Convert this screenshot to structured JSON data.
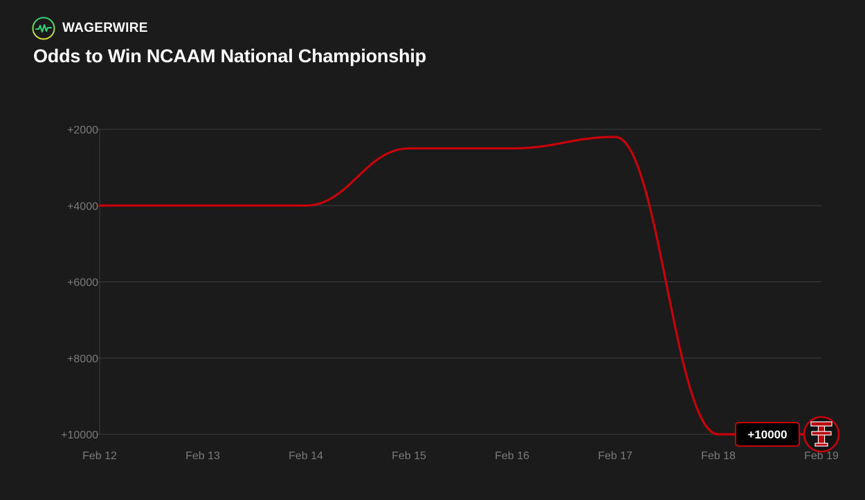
{
  "brand": {
    "name": "WAGERWIRE",
    "logo_icon": "wave-pulse-icon"
  },
  "chart_data": {
    "type": "line",
    "title": "Odds to Win NCAAM National Championship",
    "xlabel": "",
    "ylabel": "",
    "x_ticks": [
      "Feb 12",
      "Feb 13",
      "Feb 14",
      "Feb 15",
      "Feb 16",
      "Feb 17",
      "Feb 18",
      "Feb 19"
    ],
    "y_ticks": [
      "+2000",
      "+4000",
      "+6000",
      "+8000",
      "+10000"
    ],
    "y_tick_values": [
      2000,
      4000,
      6000,
      8000,
      10000
    ],
    "ylim": [
      2000,
      10000
    ],
    "y_inverted": true,
    "grid": true,
    "series": [
      {
        "color": "#c8000a",
        "points": [
          [
            "Feb 12",
            4000
          ],
          [
            "Feb 14",
            4000
          ],
          [
            "Feb 15",
            2500
          ],
          [
            "Feb 16",
            2500
          ],
          [
            "Feb 17",
            2200
          ],
          [
            "Feb 18",
            10000
          ],
          [
            "Feb 19",
            10000
          ]
        ]
      }
    ],
    "callout": {
      "label": "+10000",
      "value": 10000,
      "icon": "texas-tech-logo-icon"
    }
  },
  "colors": {
    "background": "#1b1b1c",
    "line": "#c8000a",
    "grid": "#3c3c3e",
    "axis_text": "#7a7a7a",
    "brand_accent": "#3ad67a"
  }
}
